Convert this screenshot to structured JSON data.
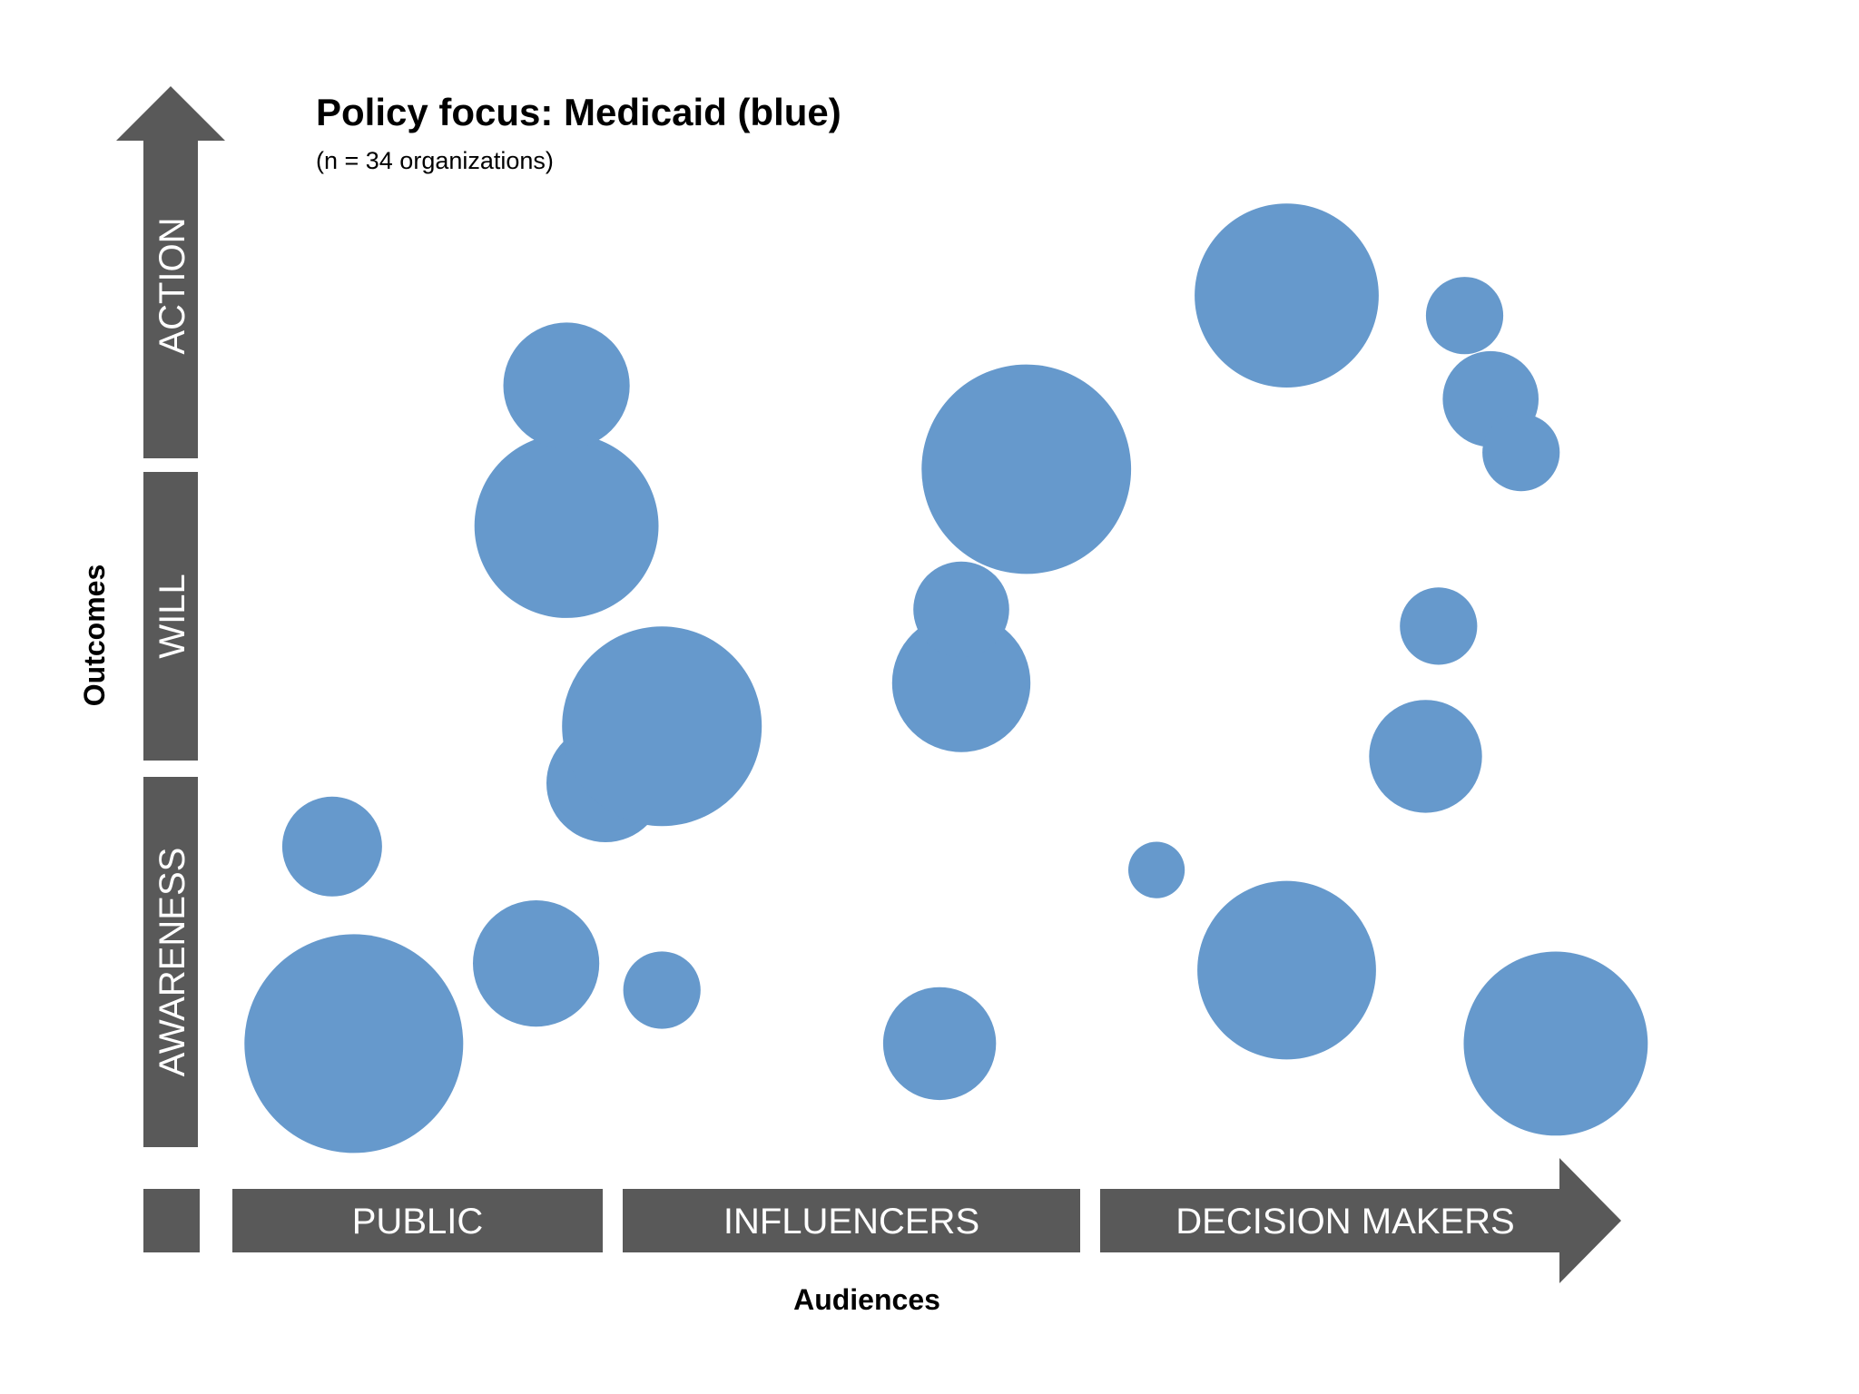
{
  "title": "Policy focus: Medicaid (blue)",
  "subtitle": "(n = 34 organizations)",
  "colors": {
    "bubble": "#6699cc",
    "axis": "#595959",
    "axis_text": "#ffffff"
  },
  "chart_data": {
    "type": "bubble",
    "title": "Policy focus: Medicaid (blue)",
    "subtitle": "(n = 34 organizations)",
    "xlabel": "Audiences",
    "ylabel": "Outcomes",
    "x_categories": [
      "PUBLIC",
      "INFLUENCERS",
      "DECISION MAKERS"
    ],
    "y_categories": [
      "AWARENESS",
      "WILL",
      "ACTION"
    ],
    "xlim": [
      0,
      3
    ],
    "ylim": [
      0,
      3
    ],
    "points": [
      {
        "x": 0.28,
        "y": 0.31,
        "size": 120
      },
      {
        "x": 0.23,
        "y": 0.9,
        "size": 25
      },
      {
        "x": 0.7,
        "y": 0.55,
        "size": 40
      },
      {
        "x": 0.99,
        "y": 0.47,
        "size": 15
      },
      {
        "x": 0.86,
        "y": 1.09,
        "size": 35
      },
      {
        "x": 0.99,
        "y": 1.26,
        "size": 100
      },
      {
        "x": 0.77,
        "y": 1.86,
        "size": 85
      },
      {
        "x": 0.77,
        "y": 2.28,
        "size": 40
      },
      {
        "x": 1.63,
        "y": 0.31,
        "size": 32
      },
      {
        "x": 1.68,
        "y": 1.39,
        "size": 48
      },
      {
        "x": 1.68,
        "y": 1.61,
        "size": 23
      },
      {
        "x": 1.83,
        "y": 2.03,
        "size": 110
      },
      {
        "x": 2.13,
        "y": 0.83,
        "size": 8
      },
      {
        "x": 2.43,
        "y": 0.53,
        "size": 80
      },
      {
        "x": 2.43,
        "y": 2.55,
        "size": 85
      },
      {
        "x": 2.84,
        "y": 2.49,
        "size": 15
      },
      {
        "x": 2.75,
        "y": 1.17,
        "size": 32
      },
      {
        "x": 2.78,
        "y": 1.56,
        "size": 15
      },
      {
        "x": 2.9,
        "y": 2.24,
        "size": 23
      },
      {
        "x": 2.97,
        "y": 2.08,
        "size": 15
      },
      {
        "x": 3.05,
        "y": 0.31,
        "size": 85
      }
    ]
  }
}
